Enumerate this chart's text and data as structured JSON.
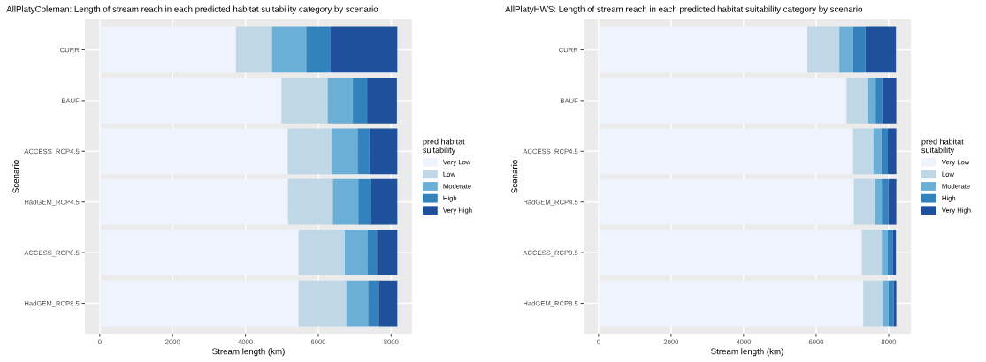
{
  "chart_data": [
    {
      "type": "bar",
      "orientation": "horizontal",
      "stacked": true,
      "title": "AllPlatyColeman: Length of stream reach in each predicted habitat suitability category by scenario",
      "xlabel": "Stream length (km)",
      "ylabel": "Scenario",
      "legend_title": "pred habitat\nsuitability",
      "legend": "right",
      "grid": true,
      "categories": [
        "CURR",
        "BAUF",
        "ACCESS_RCP4.5",
        "HadGEM_RCP4.5",
        "ACCESS_RCP8.5",
        "HadGEM_RCP8.5"
      ],
      "xlim": [
        -410,
        8575
      ],
      "xticks": [
        0,
        2000,
        4000,
        6000,
        8000
      ],
      "series": [
        {
          "name": "Very Low",
          "color": "#eef3fe",
          "values": [
            3740,
            4990,
            5160,
            5170,
            5460,
            5460
          ]
        },
        {
          "name": "Low",
          "color": "#bfd7e6",
          "values": [
            990,
            1270,
            1220,
            1230,
            1270,
            1310
          ]
        },
        {
          "name": "Moderate",
          "color": "#6baed6",
          "values": [
            940,
            690,
            700,
            700,
            620,
            600
          ]
        },
        {
          "name": "High",
          "color": "#3182bd",
          "values": [
            670,
            390,
            320,
            350,
            260,
            290
          ]
        },
        {
          "name": "Very High",
          "color": "#1f509c",
          "values": [
            1830,
            820,
            770,
            720,
            560,
            510
          ]
        }
      ]
    },
    {
      "type": "bar",
      "orientation": "horizontal",
      "stacked": true,
      "title": "AllPlatyHWS: Length of stream reach in each predicted habitat suitability category by scenario",
      "xlabel": "Stream length (km)",
      "ylabel": "Scenario",
      "legend_title": "pred habitat\nsuitability",
      "legend": "right",
      "grid": true,
      "categories": [
        "CURR",
        "BAUF",
        "ACCESS_RCP4.5",
        "HadGEM_RCP4.5",
        "ACCESS_RCP8.5",
        "HadGEM_RCP8.5"
      ],
      "xlim": [
        -410,
        8610
      ],
      "xticks": [
        0,
        2000,
        4000,
        6000,
        8000
      ],
      "series": [
        {
          "name": "Very Low",
          "color": "#eef3fe",
          "values": [
            5760,
            6840,
            7020,
            7040,
            7260,
            7300
          ]
        },
        {
          "name": "Low",
          "color": "#bfd7e6",
          "values": [
            880,
            580,
            560,
            590,
            550,
            540
          ]
        },
        {
          "name": "Moderate",
          "color": "#6baed6",
          "values": [
            380,
            220,
            220,
            180,
            160,
            160
          ]
        },
        {
          "name": "High",
          "color": "#3182bd",
          "values": [
            340,
            180,
            160,
            180,
            150,
            140
          ]
        },
        {
          "name": "Very High",
          "color": "#1f509c",
          "values": [
            840,
            390,
            250,
            220,
            80,
            70
          ]
        }
      ]
    }
  ]
}
